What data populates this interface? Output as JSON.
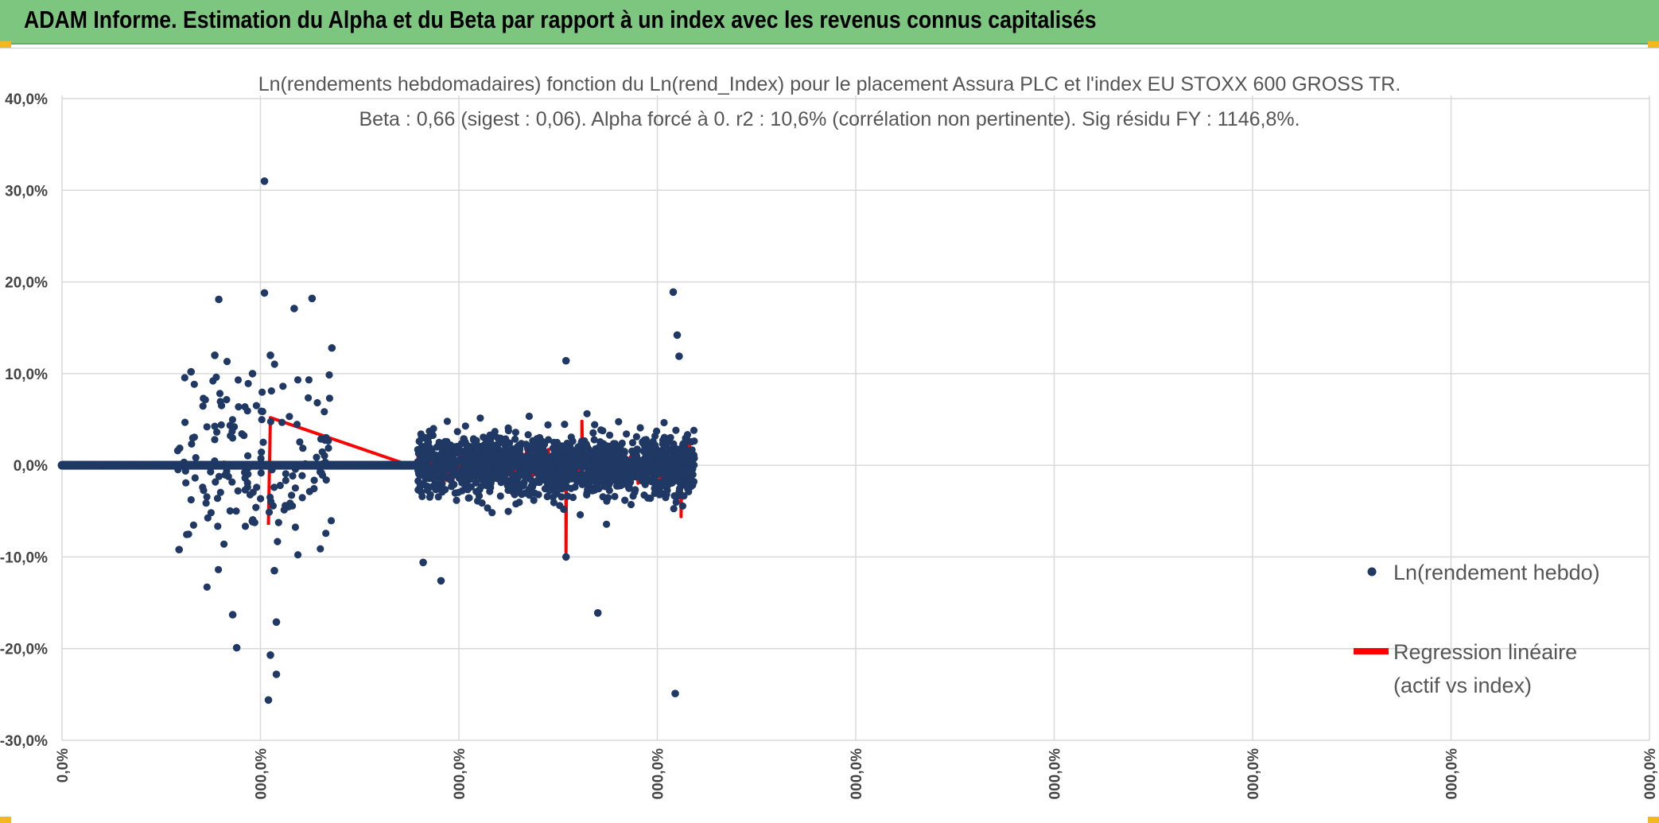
{
  "banner": {
    "title": "ADAM Informe. Estimation du Alpha et du Beta par rapport à un index avec les revenus connus capitalisés"
  },
  "colors": {
    "banner_bg": "#7dc67f",
    "points": "#1f3864",
    "regression": "#ff0000",
    "grid": "#d9d9d9"
  },
  "chart_data": {
    "type": "scatter",
    "title_lines": [
      "Ln(rendements hebdomadaires) fonction du Ln(rend_Index) pour le placement Assura PLC et l'index EU STOXX 600 GROSS TR.",
      "Beta : 0,66 (sigest : 0,06). Alpha forcé à 0. r2 : 10,6% (corrélation non pertinente). Sig résidu FY : 1146,8%."
    ],
    "y_ticks": [
      "40,0%",
      "30,0%",
      "20,0%",
      "10,0%",
      "0,0%",
      "-10,0%",
      "-20,0%",
      "-30,0%"
    ],
    "y_tick_values": [
      40,
      30,
      20,
      10,
      0,
      -10,
      -20,
      -30
    ],
    "ylim": [
      -30,
      40
    ],
    "x_ticks": [
      "0,0%",
      "000,0%",
      "000,0%",
      "000,0%",
      "000,0%",
      "000,0%",
      "000,0%",
      "000,0%",
      "000,0%"
    ],
    "grid": true,
    "legend_position": "right",
    "legend": [
      {
        "label": "Ln(rendement hebdo)",
        "marker": "dot"
      },
      {
        "label_lines": [
          "Regression linéaire",
          "(actif vs index)"
        ],
        "marker": "line"
      }
    ],
    "series": [
      {
        "name": "Ln(rendement hebdo)",
        "notable_points": [
          {
            "x": 1.02,
            "y": 31.0
          },
          {
            "x": 1.02,
            "y": 18.8
          },
          {
            "x": 0.79,
            "y": 18.1
          },
          {
            "x": 1.26,
            "y": 18.2
          },
          {
            "x": 1.17,
            "y": 17.1
          },
          {
            "x": 3.08,
            "y": 18.9
          },
          {
            "x": 3.1,
            "y": 14.2
          },
          {
            "x": 3.11,
            "y": 11.9
          },
          {
            "x": 2.54,
            "y": 11.4
          },
          {
            "x": 1.36,
            "y": 12.8
          },
          {
            "x": 1.05,
            "y": 12.0
          },
          {
            "x": 0.77,
            "y": 12.0
          },
          {
            "x": 0.65,
            "y": 10.2
          },
          {
            "x": 0.96,
            "y": 10.0
          },
          {
            "x": 1.04,
            "y": -25.6
          },
          {
            "x": 1.05,
            "y": -20.7
          },
          {
            "x": 1.08,
            "y": -22.8
          },
          {
            "x": 0.88,
            "y": -19.9
          },
          {
            "x": 1.08,
            "y": -17.1
          },
          {
            "x": 0.86,
            "y": -16.3
          },
          {
            "x": 2.7,
            "y": -16.1
          },
          {
            "x": 3.09,
            "y": -24.9
          },
          {
            "x": 0.59,
            "y": -9.2
          },
          {
            "x": 1.07,
            "y": -11.5
          },
          {
            "x": 1.82,
            "y": -10.6
          },
          {
            "x": 1.91,
            "y": -12.6
          },
          {
            "x": 2.54,
            "y": -10.0
          }
        ]
      },
      {
        "name": "Regression linéaire (actif vs index)",
        "extreme_values": [
          {
            "x": 1.05,
            "y": 5.2
          },
          {
            "x": 1.04,
            "y": -6.5
          },
          {
            "x": 2.54,
            "y": -9.5
          },
          {
            "x": 2.62,
            "y": 4.8
          },
          {
            "x": 3.12,
            "y": -5.6
          }
        ]
      }
    ]
  }
}
